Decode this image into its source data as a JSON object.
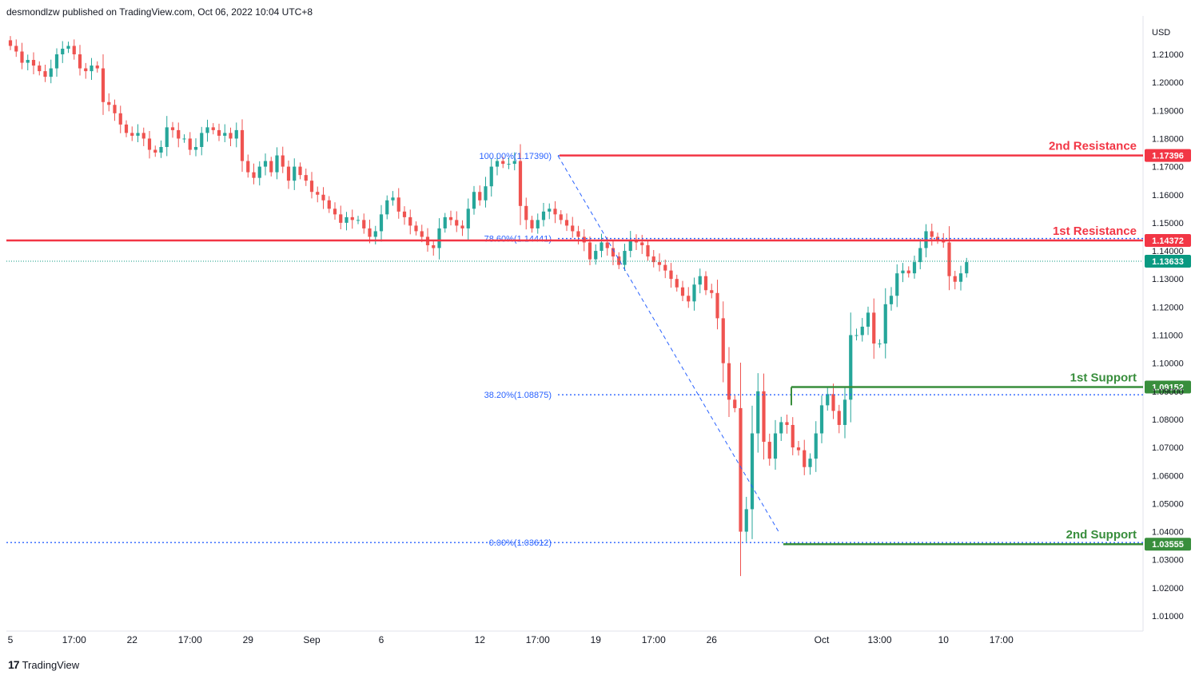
{
  "header": {
    "attribution": "desmondlzw published on TradingView.com, Oct 06, 2022 10:04 UTC+8"
  },
  "footer": {
    "logo_glyph": "17",
    "brand": "TradingView"
  },
  "colors": {
    "up": "#26a69a",
    "down": "#ef5350",
    "resistance": "#f23645",
    "support": "#388e3c",
    "fib": "#2962ff",
    "current": "#089981"
  },
  "chart_data": {
    "type": "candlestick",
    "currency_label": "USD",
    "ylim": [
      1.0,
      1.22
    ],
    "y_ticks": [
      "1.21000",
      "1.20000",
      "1.19000",
      "1.18000",
      "1.17000",
      "1.16000",
      "1.15000",
      "1.14000",
      "1.13000",
      "1.12000",
      "1.11000",
      "1.10000",
      "1.09000",
      "1.08000",
      "1.07000",
      "1.06000",
      "1.05000",
      "1.04000",
      "1.03000",
      "1.02000",
      "1.01000"
    ],
    "x_ticks": [
      {
        "label": "5",
        "x": 0
      },
      {
        "label": "17:00",
        "x": 11
      },
      {
        "label": "22",
        "x": 21
      },
      {
        "label": "17:00",
        "x": 31
      },
      {
        "label": "29",
        "x": 41
      },
      {
        "label": "Sep",
        "x": 52
      },
      {
        "label": "6",
        "x": 64
      },
      {
        "label": "12",
        "x": 81
      },
      {
        "label": "17:00",
        "x": 91
      },
      {
        "label": "19",
        "x": 101
      },
      {
        "label": "17:00",
        "x": 111
      },
      {
        "label": "26",
        "x": 121
      },
      {
        "label": "Oct",
        "x": 140
      },
      {
        "label": "13:00",
        "x": 150
      },
      {
        "label": "10",
        "x": 161
      },
      {
        "label": "17:00",
        "x": 171
      }
    ],
    "close_series": [
      1.213,
      1.211,
      1.207,
      1.208,
      1.206,
      1.204,
      1.202,
      1.205,
      1.21,
      1.212,
      1.213,
      1.21,
      1.205,
      1.204,
      1.206,
      1.205,
      1.193,
      1.192,
      1.189,
      1.185,
      1.182,
      1.181,
      1.182,
      1.18,
      1.176,
      1.175,
      1.177,
      1.184,
      1.183,
      1.18,
      1.18,
      1.176,
      1.177,
      1.182,
      1.184,
      1.183,
      1.181,
      1.182,
      1.18,
      1.183,
      1.172,
      1.168,
      1.166,
      1.17,
      1.172,
      1.168,
      1.174,
      1.17,
      1.165,
      1.17,
      1.167,
      1.165,
      1.161,
      1.16,
      1.158,
      1.155,
      1.153,
      1.15,
      1.152,
      1.151,
      1.151,
      1.148,
      1.145,
      1.147,
      1.153,
      1.158,
      1.159,
      1.154,
      1.152,
      1.149,
      1.147,
      1.145,
      1.142,
      1.141,
      1.148,
      1.152,
      1.151,
      1.149,
      1.148,
      1.155,
      1.161,
      1.158,
      1.163,
      1.17,
      1.172,
      1.171,
      1.171,
      1.172,
      1.156,
      1.151,
      1.148,
      1.151,
      1.154,
      1.155,
      1.153,
      1.151,
      1.149,
      1.147,
      1.145,
      1.143,
      1.137,
      1.14,
      1.143,
      1.141,
      1.138,
      1.135,
      1.14,
      1.144,
      1.143,
      1.142,
      1.138,
      1.136,
      1.135,
      1.133,
      1.13,
      1.127,
      1.124,
      1.122,
      1.128,
      1.131,
      1.126,
      1.125,
      1.116,
      1.1,
      1.087,
      1.084,
      1.04,
      1.048,
      1.075,
      1.09,
      1.072,
      1.066,
      1.075,
      1.079,
      1.078,
      1.07,
      1.069,
      1.063,
      1.066,
      1.075,
      1.085,
      1.089,
      1.083,
      1.078,
      1.087,
      1.11,
      1.11,
      1.113,
      1.118,
      1.107,
      1.107,
      1.121,
      1.124,
      1.132,
      1.133,
      1.132,
      1.136,
      1.141,
      1.147,
      1.145,
      1.144,
      1.143,
      1.131,
      1.129,
      1.132,
      1.136
    ],
    "fib_levels": [
      {
        "label": "100.00%(1.17390)",
        "value": 1.1739
      },
      {
        "label": "78.60%(1.14441)",
        "value": 1.14441
      },
      {
        "label": "38.20%(1.08875)",
        "value": 1.08875
      },
      {
        "label": "0.00%(1.03612)",
        "value": 1.03612
      }
    ],
    "levels": [
      {
        "name": "2nd Resistance",
        "value": 1.17396,
        "tag": "1.17396",
        "kind": "resistance"
      },
      {
        "name": "1st Resistance",
        "value": 1.14372,
        "tag": "1.14372",
        "kind": "resistance"
      },
      {
        "name": "1st Support",
        "value": 1.09152,
        "tag": "1.09152",
        "kind": "support"
      },
      {
        "name": "2nd Support",
        "value": 1.03555,
        "tag": "1.03555",
        "kind": "support"
      }
    ],
    "current_price": {
      "value": 1.13633,
      "tag": "1.13633"
    }
  }
}
